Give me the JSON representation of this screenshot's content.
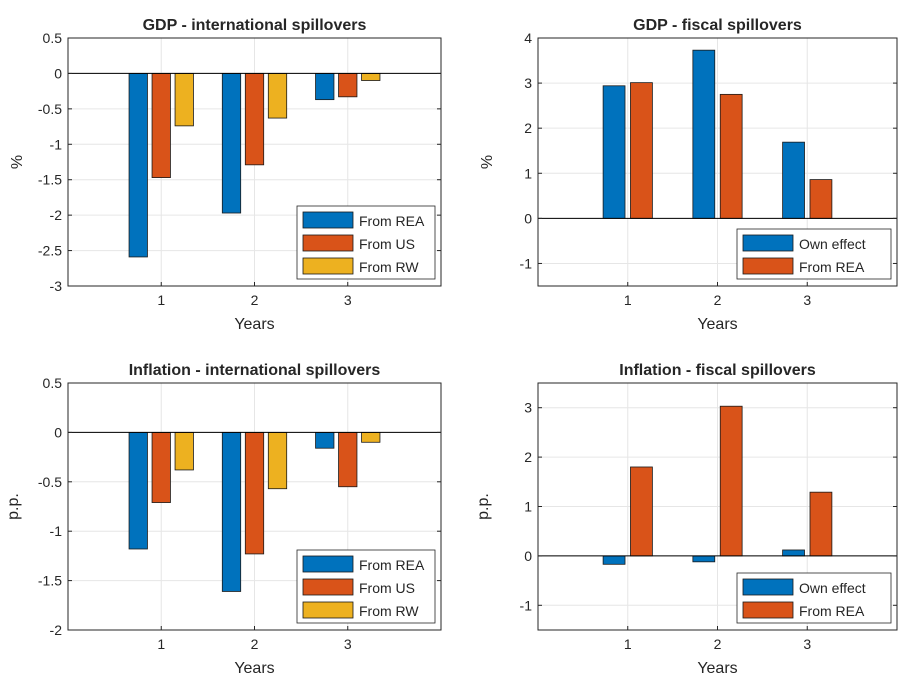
{
  "chart_data": [
    {
      "type": "bar",
      "title": "GDP - international spillovers",
      "xlabel": "Years",
      "ylabel": "%",
      "categories": [
        "1",
        "2",
        "3"
      ],
      "ylim": [
        -3,
        0.5
      ],
      "yticks": [
        "-3",
        "-2.5",
        "-2",
        "-1.5",
        "-1",
        "-0.5",
        "0",
        "0.5"
      ],
      "grid": true,
      "legend_position": "bottom-right",
      "series": [
        {
          "name": "From REA",
          "color": "#0072BD",
          "values": [
            -2.59,
            -1.97,
            -0.37
          ]
        },
        {
          "name": "From US",
          "color": "#D95319",
          "values": [
            -1.47,
            -1.29,
            -0.33
          ]
        },
        {
          "name": "From RW",
          "color": "#EDB120",
          "values": [
            -0.74,
            -0.63,
            -0.1
          ]
        }
      ]
    },
    {
      "type": "bar",
      "title": "GDP - fiscal spillovers",
      "xlabel": "Years",
      "ylabel": "%",
      "categories": [
        "1",
        "2",
        "3"
      ],
      "ylim": [
        -1.5,
        4
      ],
      "yticks": [
        "-1",
        "0",
        "1",
        "2",
        "3",
        "4"
      ],
      "grid": true,
      "legend_position": "bottom-right",
      "series": [
        {
          "name": "Own effect",
          "color": "#0072BD",
          "values": [
            2.94,
            3.73,
            1.69
          ]
        },
        {
          "name": "From REA",
          "color": "#D95319",
          "values": [
            3.01,
            2.75,
            0.86
          ]
        }
      ]
    },
    {
      "type": "bar",
      "title": "Inflation - international spillovers",
      "xlabel": "Years",
      "ylabel": "p.p.",
      "categories": [
        "1",
        "2",
        "3"
      ],
      "ylim": [
        -2,
        0.5
      ],
      "yticks": [
        "-2",
        "-1.5",
        "-1",
        "-0.5",
        "0",
        "0.5"
      ],
      "grid": true,
      "legend_position": "bottom-right",
      "series": [
        {
          "name": "From REA",
          "color": "#0072BD",
          "values": [
            -1.18,
            -1.61,
            -0.16
          ]
        },
        {
          "name": "From US",
          "color": "#D95319",
          "values": [
            -0.71,
            -1.23,
            -0.55
          ]
        },
        {
          "name": "From RW",
          "color": "#EDB120",
          "values": [
            -0.38,
            -0.57,
            -0.1
          ]
        }
      ]
    },
    {
      "type": "bar",
      "title": "Inflation - fiscal spillovers",
      "xlabel": "Years",
      "ylabel": "p.p.",
      "categories": [
        "1",
        "2",
        "3"
      ],
      "ylim": [
        -1.5,
        3.5
      ],
      "yticks": [
        "-1",
        "0",
        "1",
        "2",
        "3"
      ],
      "grid": true,
      "legend_position": "bottom-right",
      "series": [
        {
          "name": "Own effect",
          "color": "#0072BD",
          "values": [
            -0.17,
            -0.12,
            0.12
          ]
        },
        {
          "name": "From REA",
          "color": "#D95319",
          "values": [
            1.8,
            3.03,
            1.29
          ]
        }
      ]
    }
  ]
}
